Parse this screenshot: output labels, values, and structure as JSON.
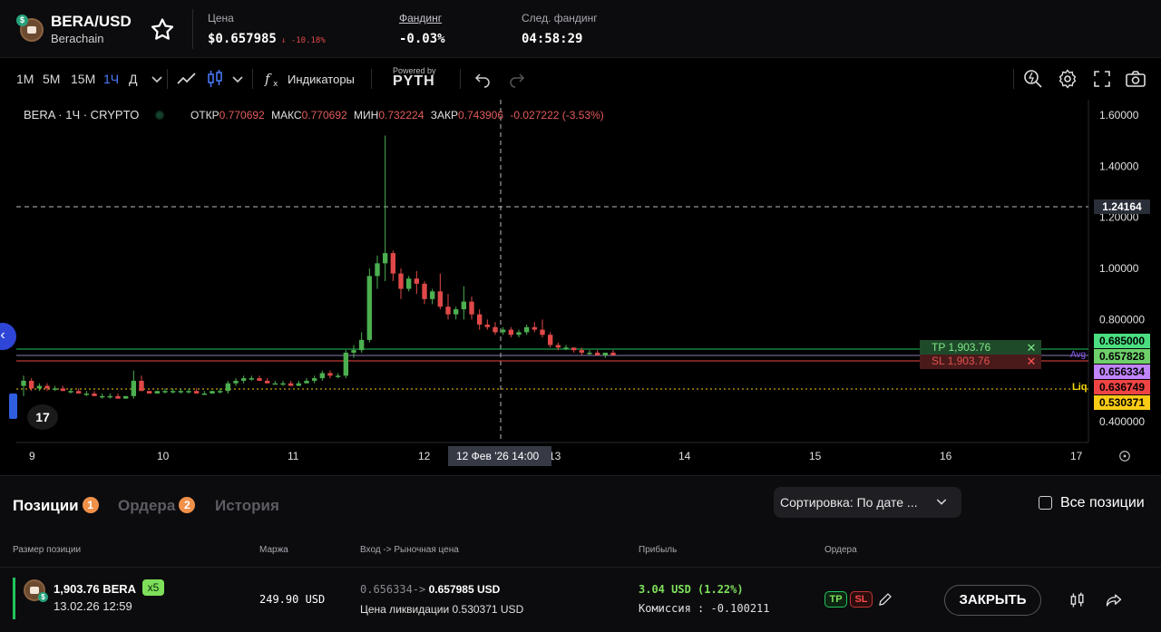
{
  "header": {
    "pair": "BERA/USD",
    "network": "Berachain",
    "price_label": "Цена",
    "price_value": "$0.657985",
    "price_change": "↓ -10.18%",
    "funding_label": "Фандинг",
    "funding_value": "-0.03%",
    "next_funding_label": "След. фандинг",
    "next_funding_value": "04:58:29"
  },
  "toolbar": {
    "timeframes": [
      "1M",
      "5M",
      "15M",
      "1Ч",
      "Д"
    ],
    "active_timeframe": "1Ч",
    "indicators_label": "Индикаторы",
    "powered_by": "Powered by",
    "pyth": "PYTH"
  },
  "chart": {
    "symbol_line": "BERA · 1Ч · CRYPTO",
    "ohlc": {
      "open_label": "ОТКР",
      "open": "0.770692",
      "high_label": "МАКС",
      "high": "0.770692",
      "low_label": "МИН",
      "low": "0.732224",
      "close_label": "ЗАКР",
      "close": "0.743906",
      "change": "-0.027222 (-3.53%)"
    },
    "price_ticks": [
      "1.60000",
      "1.40000",
      "1.20000",
      "1.00000",
      "0.800000",
      "0.400000"
    ],
    "crosshair_price": "1.24164",
    "crosshair_date": "12 Фев '26   14:00",
    "x_labels": [
      "9",
      "10",
      "11",
      "12",
      "13",
      "14",
      "15",
      "16",
      "17"
    ],
    "tp_line_label": "TP 1,903.76",
    "sl_line_label": "SL 1,903.76",
    "avg_label": "Avg",
    "liq_label": "Liq",
    "price_tags": {
      "tp": "0.685000",
      "current": "0.657828",
      "avg": "0.656334",
      "sl": "0.636749",
      "liq": "0.530371"
    },
    "colors": {
      "up": "#4caf50",
      "down": "#e04848",
      "tp": "#22c55e",
      "sl": "#ef4444",
      "avg": "#c084fc",
      "liq": "#facc15"
    }
  },
  "chart_data": {
    "type": "candlestick",
    "x_range_days": [
      "9",
      "17"
    ],
    "ylim": [
      0.35,
      1.65
    ],
    "ohlc_estimated": [
      [
        0.54,
        0.58,
        0.5,
        0.56
      ],
      [
        0.56,
        0.57,
        0.52,
        0.53
      ],
      [
        0.53,
        0.55,
        0.52,
        0.54
      ],
      [
        0.54,
        0.55,
        0.52,
        0.53
      ],
      [
        0.53,
        0.54,
        0.52,
        0.53
      ],
      [
        0.53,
        0.54,
        0.52,
        0.52
      ],
      [
        0.52,
        0.53,
        0.51,
        0.52
      ],
      [
        0.52,
        0.53,
        0.51,
        0.51
      ],
      [
        0.51,
        0.52,
        0.5,
        0.51
      ],
      [
        0.51,
        0.52,
        0.5,
        0.5
      ],
      [
        0.5,
        0.51,
        0.49,
        0.5
      ],
      [
        0.5,
        0.51,
        0.49,
        0.5
      ],
      [
        0.5,
        0.51,
        0.49,
        0.49
      ],
      [
        0.49,
        0.5,
        0.49,
        0.5
      ],
      [
        0.5,
        0.6,
        0.49,
        0.56
      ],
      [
        0.56,
        0.58,
        0.52,
        0.52
      ],
      [
        0.52,
        0.52,
        0.51,
        0.51
      ],
      [
        0.51,
        0.52,
        0.51,
        0.52
      ],
      [
        0.52,
        0.53,
        0.51,
        0.52
      ],
      [
        0.52,
        0.53,
        0.51,
        0.52
      ],
      [
        0.52,
        0.53,
        0.51,
        0.52
      ],
      [
        0.52,
        0.53,
        0.51,
        0.52
      ],
      [
        0.52,
        0.53,
        0.51,
        0.51
      ],
      [
        0.51,
        0.52,
        0.51,
        0.51
      ],
      [
        0.51,
        0.52,
        0.51,
        0.52
      ],
      [
        0.52,
        0.53,
        0.51,
        0.52
      ],
      [
        0.52,
        0.56,
        0.51,
        0.55
      ],
      [
        0.55,
        0.57,
        0.54,
        0.56
      ],
      [
        0.56,
        0.58,
        0.55,
        0.57
      ],
      [
        0.57,
        0.58,
        0.56,
        0.57
      ],
      [
        0.57,
        0.58,
        0.56,
        0.56
      ],
      [
        0.56,
        0.57,
        0.55,
        0.55
      ],
      [
        0.55,
        0.56,
        0.55,
        0.55
      ],
      [
        0.55,
        0.56,
        0.54,
        0.55
      ],
      [
        0.55,
        0.56,
        0.54,
        0.54
      ],
      [
        0.54,
        0.56,
        0.54,
        0.55
      ],
      [
        0.55,
        0.57,
        0.55,
        0.56
      ],
      [
        0.56,
        0.58,
        0.55,
        0.57
      ],
      [
        0.57,
        0.6,
        0.56,
        0.59
      ],
      [
        0.59,
        0.6,
        0.57,
        0.58
      ],
      [
        0.58,
        0.59,
        0.57,
        0.58
      ],
      [
        0.58,
        0.68,
        0.57,
        0.67
      ],
      [
        0.67,
        0.7,
        0.65,
        0.68
      ],
      [
        0.68,
        0.75,
        0.67,
        0.72
      ],
      [
        0.72,
        1.0,
        0.71,
        0.97
      ],
      [
        0.97,
        1.05,
        0.92,
        1.02
      ],
      [
        1.02,
        1.52,
        0.95,
        1.06
      ],
      [
        1.06,
        1.07,
        0.95,
        0.98
      ],
      [
        0.98,
        1.0,
        0.88,
        0.92
      ],
      [
        0.92,
        0.97,
        0.91,
        0.96
      ],
      [
        0.96,
        0.99,
        0.9,
        0.94
      ],
      [
        0.94,
        0.95,
        0.86,
        0.88
      ],
      [
        0.88,
        0.92,
        0.86,
        0.91
      ],
      [
        0.91,
        0.98,
        0.84,
        0.85
      ],
      [
        0.85,
        0.9,
        0.8,
        0.82
      ],
      [
        0.82,
        0.85,
        0.8,
        0.84
      ],
      [
        0.84,
        0.93,
        0.8,
        0.87
      ],
      [
        0.87,
        0.89,
        0.8,
        0.82
      ],
      [
        0.82,
        0.84,
        0.76,
        0.78
      ],
      [
        0.78,
        0.8,
        0.76,
        0.77
      ],
      [
        0.77,
        0.79,
        0.74,
        0.75
      ],
      [
        0.75,
        0.77,
        0.74,
        0.76
      ],
      [
        0.76,
        0.77,
        0.73,
        0.74
      ],
      [
        0.74,
        0.76,
        0.73,
        0.75
      ],
      [
        0.75,
        0.78,
        0.74,
        0.77
      ],
      [
        0.77,
        0.79,
        0.75,
        0.76
      ],
      [
        0.76,
        0.8,
        0.73,
        0.74
      ],
      [
        0.74,
        0.75,
        0.69,
        0.7
      ],
      [
        0.7,
        0.71,
        0.68,
        0.69
      ],
      [
        0.69,
        0.7,
        0.68,
        0.69
      ],
      [
        0.69,
        0.69,
        0.67,
        0.68
      ],
      [
        0.68,
        0.69,
        0.66,
        0.67
      ],
      [
        0.67,
        0.68,
        0.66,
        0.67
      ],
      [
        0.67,
        0.68,
        0.66,
        0.66
      ],
      [
        0.66,
        0.67,
        0.65,
        0.67
      ],
      [
        0.67,
        0.68,
        0.66,
        0.66
      ]
    ],
    "horizontal_lines": {
      "tp": 0.685,
      "current": 0.657828,
      "avg": 0.656334,
      "sl": 0.636749,
      "liq": 0.530371,
      "crosshair": 1.24164
    }
  },
  "positions": {
    "tab_positions": "Позиции",
    "tab_positions_count": "1",
    "tab_orders": "Ордера",
    "tab_orders_count": "2",
    "tab_history": "История",
    "sort_label": "Сортировка: По дате ...",
    "all_positions_label": "Все позиции",
    "col_size": "Размер позиции",
    "col_margin": "Маржа",
    "col_entry": "Вход -> Рыночная цена",
    "col_pnl": "Прибыль",
    "col_orders": "Ордера",
    "row": {
      "size": "1,903.76 BERA",
      "leverage": "x5",
      "date": "13.02.26 12:59",
      "margin": "249.90 USD",
      "entry_old": "0.656334->",
      "entry_current": "0.657985 USD",
      "liq_label": "Цена ликвидации 0.530371 USD",
      "pnl": "3.04 USD (1.22%)",
      "fee": "Комиссия : -0.100211",
      "tp": "TP",
      "sl": "SL",
      "close": "ЗАКРЫТЬ"
    }
  }
}
